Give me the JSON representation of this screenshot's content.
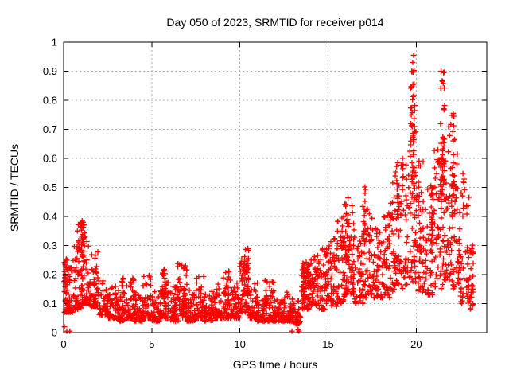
{
  "chart_data": {
    "type": "scatter",
    "title": "Day 050 of 2023, SRMTID for receiver p014",
    "xlabel": "GPS time / hours",
    "ylabel": "SRMTID / TECUs",
    "xlim": [
      0,
      24
    ],
    "ylim": [
      0,
      1
    ],
    "xticks": [
      0,
      5,
      10,
      15,
      20
    ],
    "xtick_labels": [
      "0",
      "5",
      "10",
      "15",
      "20"
    ],
    "yticks": [
      0,
      0.1,
      0.2,
      0.3,
      0.4,
      0.5,
      0.6,
      0.7,
      0.8,
      0.9,
      1
    ],
    "ytick_labels": [
      "0",
      "0.1",
      "0.2",
      "0.3",
      "0.4",
      "0.5",
      "0.6",
      "0.7",
      "0.8",
      "0.9",
      "1"
    ],
    "grid": true,
    "legend": "none",
    "marker": "plus",
    "marker_color": "#ff0000",
    "grid_color": "#b0b0b0",
    "axis_color": "#000000",
    "background": "#ffffff",
    "x_data_end_hour": 23.25,
    "bands_comment": "dense scatter envelope per time bin: [t_start, t_end, count, y_min, y_max]",
    "bands": [
      [
        0.0,
        0.5,
        55,
        0.07,
        0.25
      ],
      [
        0.5,
        1.0,
        50,
        0.08,
        0.3
      ],
      [
        1.0,
        1.5,
        55,
        0.1,
        0.36
      ],
      [
        1.5,
        2.0,
        48,
        0.09,
        0.28
      ],
      [
        2.0,
        2.5,
        48,
        0.06,
        0.2
      ],
      [
        2.5,
        3.0,
        48,
        0.05,
        0.16
      ],
      [
        3.0,
        3.5,
        48,
        0.04,
        0.15
      ],
      [
        3.5,
        4.0,
        48,
        0.05,
        0.19
      ],
      [
        4.0,
        4.5,
        48,
        0.04,
        0.14
      ],
      [
        4.5,
        5.0,
        48,
        0.05,
        0.2
      ],
      [
        5.0,
        5.5,
        48,
        0.04,
        0.15
      ],
      [
        5.5,
        6.0,
        48,
        0.05,
        0.22
      ],
      [
        6.0,
        6.5,
        48,
        0.04,
        0.16
      ],
      [
        6.5,
        7.0,
        48,
        0.05,
        0.24
      ],
      [
        7.0,
        7.5,
        48,
        0.04,
        0.15
      ],
      [
        7.5,
        8.0,
        48,
        0.05,
        0.2
      ],
      [
        8.0,
        8.5,
        48,
        0.04,
        0.15
      ],
      [
        8.5,
        9.0,
        48,
        0.05,
        0.17
      ],
      [
        9.0,
        9.5,
        48,
        0.05,
        0.22
      ],
      [
        9.5,
        10.0,
        48,
        0.05,
        0.18
      ],
      [
        10.0,
        10.5,
        50,
        0.07,
        0.24
      ],
      [
        10.5,
        11.0,
        46,
        0.05,
        0.18
      ],
      [
        11.0,
        11.5,
        46,
        0.04,
        0.12
      ],
      [
        11.5,
        12.0,
        46,
        0.04,
        0.18
      ],
      [
        12.0,
        12.5,
        46,
        0.04,
        0.12
      ],
      [
        12.5,
        13.0,
        46,
        0.04,
        0.14
      ],
      [
        13.0,
        13.5,
        40,
        0.03,
        0.11
      ],
      [
        13.5,
        14.0,
        52,
        0.08,
        0.24
      ],
      [
        14.0,
        14.5,
        52,
        0.09,
        0.27
      ],
      [
        14.5,
        15.0,
        50,
        0.08,
        0.3
      ],
      [
        15.0,
        15.5,
        50,
        0.09,
        0.33
      ],
      [
        15.5,
        16.0,
        50,
        0.1,
        0.4
      ],
      [
        16.0,
        16.5,
        52,
        0.13,
        0.45
      ],
      [
        16.5,
        17.0,
        46,
        0.1,
        0.35
      ],
      [
        17.0,
        17.5,
        46,
        0.12,
        0.45
      ],
      [
        17.5,
        18.0,
        46,
        0.12,
        0.36
      ],
      [
        18.0,
        18.5,
        48,
        0.12,
        0.42
      ],
      [
        18.5,
        19.0,
        48,
        0.14,
        0.55
      ],
      [
        19.0,
        19.5,
        50,
        0.15,
        0.62
      ],
      [
        19.5,
        20.0,
        52,
        0.17,
        0.7
      ],
      [
        20.0,
        20.5,
        52,
        0.14,
        0.6
      ],
      [
        20.5,
        21.0,
        52,
        0.13,
        0.52
      ],
      [
        21.0,
        21.5,
        52,
        0.15,
        0.65
      ],
      [
        21.5,
        22.0,
        54,
        0.18,
        0.72
      ],
      [
        22.0,
        22.5,
        52,
        0.15,
        0.62
      ],
      [
        22.5,
        23.0,
        48,
        0.1,
        0.55
      ],
      [
        23.0,
        23.25,
        26,
        0.08,
        0.32
      ]
    ],
    "clusters_comment": "vertical spike clusters: [x_center, x_halfwidth, y_min, y_max, count]",
    "clusters": [
      [
        0.15,
        0.12,
        0.1,
        0.26,
        22
      ],
      [
        1.0,
        0.22,
        0.24,
        0.385,
        38
      ],
      [
        3.4,
        0.1,
        0.12,
        0.19,
        8
      ],
      [
        5.8,
        0.08,
        0.1,
        0.22,
        10
      ],
      [
        6.55,
        0.08,
        0.1,
        0.24,
        10
      ],
      [
        9.3,
        0.08,
        0.1,
        0.22,
        10
      ],
      [
        10.3,
        0.22,
        0.13,
        0.29,
        30
      ],
      [
        11.5,
        0.08,
        0.08,
        0.18,
        10
      ],
      [
        13.8,
        0.25,
        0.12,
        0.26,
        30
      ],
      [
        16.05,
        0.12,
        0.22,
        0.47,
        22
      ],
      [
        17.05,
        0.08,
        0.3,
        0.53,
        12
      ],
      [
        18.9,
        0.1,
        0.3,
        0.6,
        12
      ],
      [
        19.8,
        0.12,
        0.45,
        0.965,
        42
      ],
      [
        20.9,
        0.1,
        0.3,
        0.62,
        12
      ],
      [
        21.5,
        0.12,
        0.45,
        0.9,
        34
      ],
      [
        22.1,
        0.1,
        0.4,
        0.76,
        20
      ]
    ],
    "notable_points_comment": "individually visible extreme points [x_hour, y_TECUs]",
    "notable_points": [
      [
        0.05,
        0.02
      ],
      [
        0.18,
        0.005
      ],
      [
        0.35,
        0.005
      ],
      [
        1.0,
        0.375
      ],
      [
        1.05,
        0.385
      ],
      [
        12.95,
        0.005
      ],
      [
        13.3,
        0.01
      ],
      [
        13.35,
        0.005
      ],
      [
        19.75,
        0.9
      ],
      [
        19.8,
        0.93
      ],
      [
        19.85,
        0.955
      ],
      [
        21.5,
        0.865
      ],
      [
        21.55,
        0.895
      ],
      [
        22.1,
        0.755
      ],
      [
        23.1,
        0.22
      ],
      [
        23.15,
        0.15
      ]
    ]
  }
}
